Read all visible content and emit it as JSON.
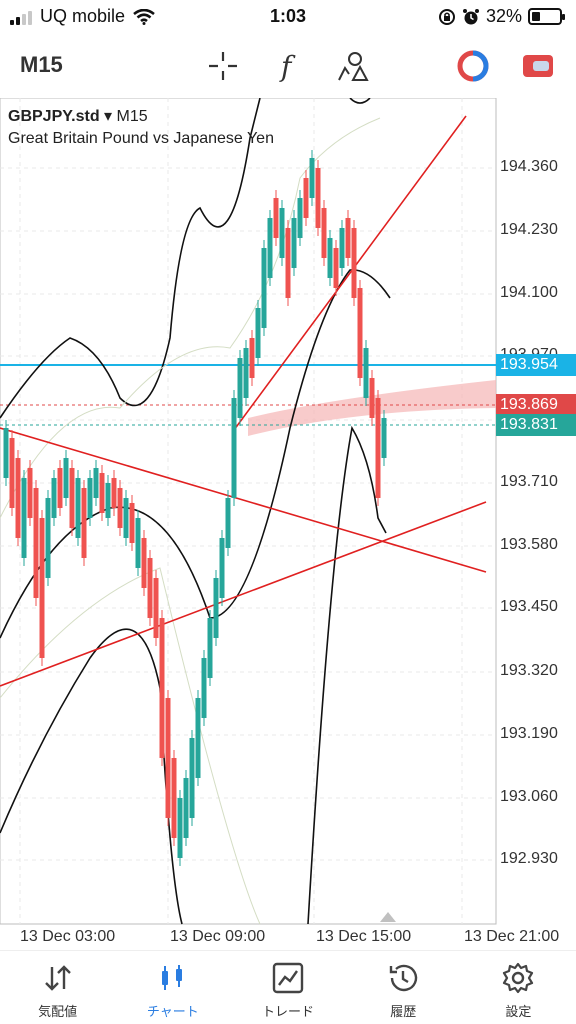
{
  "status_bar": {
    "carrier": "UQ mobile",
    "time": "1:03",
    "battery": "32%",
    "battery_level": 0.32
  },
  "toolbar": {
    "timeframe": "M15"
  },
  "chart": {
    "symbol": "GBPJPY.std",
    "dropdown_arrow": "▾",
    "timeframe": "M15",
    "description": "Great Britain Pound vs Japanese Yen",
    "price_axis": [
      "194.360",
      "194.230",
      "194.100",
      "193.970",
      "193.710",
      "193.580",
      "193.450",
      "193.320",
      "193.190",
      "193.060",
      "192.930"
    ],
    "tags": {
      "blue_line": "193.954",
      "bid": "193.869",
      "ask": "193.831"
    },
    "time_axis": [
      "13 Dec 03:00",
      "13 Dec 09:00",
      "13 Dec 15:00",
      "13 Dec 21:00"
    ],
    "colors": {
      "bull": "#26a69a",
      "bear": "#ef5350",
      "trendline": "#e02020",
      "horizontal_line": "#1ab3e6",
      "bid_tag": "#e04848",
      "ask_tag": "#26a69a"
    }
  },
  "bottom_nav": {
    "items": [
      {
        "label": "気配値",
        "icon": "quotes-arrows-icon"
      },
      {
        "label": "チャート",
        "icon": "candlestick-chart-icon"
      },
      {
        "label": "トレード",
        "icon": "trade-chart-icon"
      },
      {
        "label": "履歴",
        "icon": "history-clock-icon"
      },
      {
        "label": "設定",
        "icon": "settings-gear-icon"
      }
    ]
  }
}
